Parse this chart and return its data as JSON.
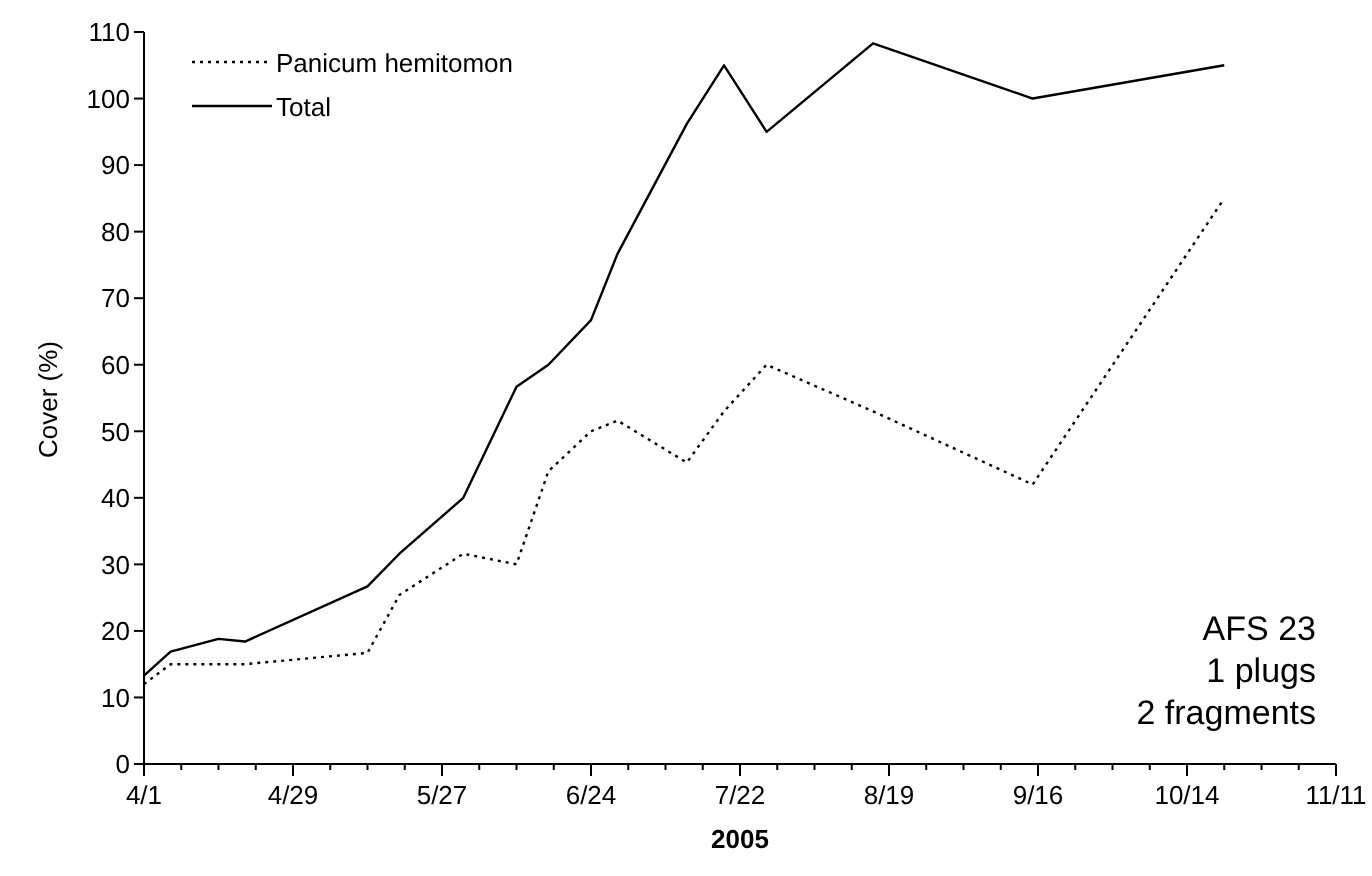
{
  "chart_data": {
    "type": "line",
    "xlabel": "2005",
    "ylabel": "Cover (%)",
    "x": [
      "2005-04-01",
      "2005-04-06",
      "2005-04-15",
      "2005-04-20",
      "2005-05-13",
      "2005-05-19",
      "2005-05-31",
      "2005-06-10",
      "2005-06-16",
      "2005-06-24",
      "2005-06-29",
      "2005-07-12",
      "2005-07-19",
      "2005-07-27",
      "2005-08-16",
      "2005-09-15",
      "2005-10-21"
    ],
    "series": [
      {
        "name": "Panicum hemitomon",
        "color": "#000000",
        "line_style": "dotted",
        "values": [
          12,
          15,
          15,
          15,
          16.7,
          25.4,
          31.6,
          30,
          44,
          50,
          51.6,
          45.3,
          53,
          60,
          53,
          42,
          85
        ]
      },
      {
        "name": "Total",
        "color": "#000000",
        "line_style": "solid",
        "values": [
          13.3,
          16.9,
          18.8,
          18.4,
          26.7,
          31.6,
          40,
          56.7,
          60,
          66.7,
          76.7,
          96.2,
          105,
          95,
          108.3,
          100,
          105
        ]
      }
    ],
    "xlim": [
      "2005-04-01",
      "2005-11-11"
    ],
    "xticks": [
      {
        "value": "2005-04-01",
        "label": "4/1"
      },
      {
        "value": "2005-04-08",
        "label": null
      },
      {
        "value": "2005-04-15",
        "label": null
      },
      {
        "value": "2005-04-22",
        "label": null
      },
      {
        "value": "2005-04-29",
        "label": "4/29"
      },
      {
        "value": "2005-05-06",
        "label": null
      },
      {
        "value": "2005-05-13",
        "label": null
      },
      {
        "value": "2005-05-20",
        "label": null
      },
      {
        "value": "2005-05-27",
        "label": "5/27"
      },
      {
        "value": "2005-06-03",
        "label": null
      },
      {
        "value": "2005-06-10",
        "label": null
      },
      {
        "value": "2005-06-17",
        "label": null
      },
      {
        "value": "2005-06-24",
        "label": "6/24"
      },
      {
        "value": "2005-07-01",
        "label": null
      },
      {
        "value": "2005-07-08",
        "label": null
      },
      {
        "value": "2005-07-15",
        "label": null
      },
      {
        "value": "2005-07-22",
        "label": "7/22"
      },
      {
        "value": "2005-07-29",
        "label": null
      },
      {
        "value": "2005-08-05",
        "label": null
      },
      {
        "value": "2005-08-12",
        "label": null
      },
      {
        "value": "2005-08-19",
        "label": "8/19"
      },
      {
        "value": "2005-08-26",
        "label": null
      },
      {
        "value": "2005-09-02",
        "label": null
      },
      {
        "value": "2005-09-09",
        "label": null
      },
      {
        "value": "2005-09-16",
        "label": "9/16"
      },
      {
        "value": "2005-09-23",
        "label": null
      },
      {
        "value": "2005-09-30",
        "label": null
      },
      {
        "value": "2005-10-07",
        "label": null
      },
      {
        "value": "2005-10-14",
        "label": "10/14"
      },
      {
        "value": "2005-10-21",
        "label": null
      },
      {
        "value": "2005-10-28",
        "label": null
      },
      {
        "value": "2005-11-04",
        "label": null
      },
      {
        "value": "2005-11-11",
        "label": "11/11"
      }
    ],
    "ylim": [
      0,
      110
    ],
    "yticks": [
      0,
      10,
      20,
      30,
      40,
      50,
      60,
      70,
      80,
      90,
      100,
      110
    ],
    "annotations": [
      "AFS 23\n1 plugs\n2 fragments"
    ],
    "legend": "top left",
    "grid": false,
    "marker": "none"
  }
}
